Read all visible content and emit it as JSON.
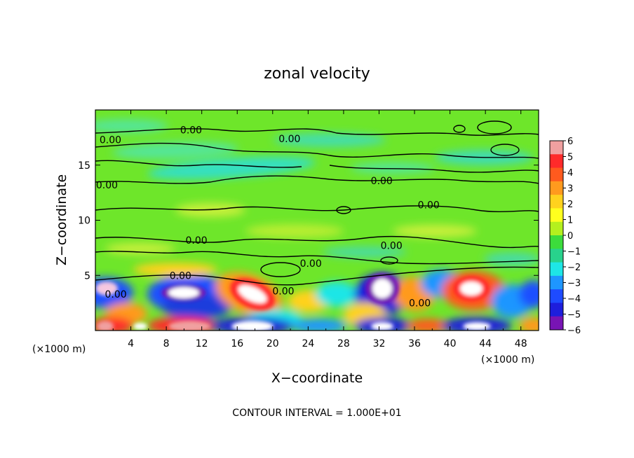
{
  "chart_data": {
    "type": "heatmap",
    "title": "zonal velocity",
    "xlabel": "X−coordinate",
    "ylabel": "Z−coordinate",
    "x_unit": "(×1000 m)",
    "y_unit": "(×1000 m)",
    "xlim": [
      0,
      50
    ],
    "ylim": [
      0,
      20
    ],
    "x_ticks": [
      4,
      8,
      12,
      16,
      20,
      24,
      28,
      32,
      36,
      40,
      44,
      48
    ],
    "y_ticks": [
      5,
      10,
      15
    ],
    "colorbar": {
      "ticks": [
        "6",
        "5",
        "4",
        "3",
        "2",
        "1",
        "0",
        "−1",
        "−2",
        "−3",
        "−4",
        "−5",
        "−6"
      ],
      "colors": [
        "#f0a0a0",
        "#ff2a2a",
        "#ff5a1e",
        "#ff9a1e",
        "#ffd21e",
        "#ffff1e",
        "#b4f01e",
        "#3cdc3c",
        "#28d28c",
        "#1ee6e6",
        "#1e96ff",
        "#1e4bff",
        "#1e1edc",
        "#7814b4"
      ]
    },
    "contour_labels": [
      {
        "text": "0.00",
        "x": 10.8,
        "z": 18.2
      },
      {
        "text": "0.00",
        "x": 21.9,
        "z": 17.4
      },
      {
        "text": "0.00",
        "x": 1.7,
        "z": 17.3
      },
      {
        "text": "0.00",
        "x": 1.3,
        "z": 13.2
      },
      {
        "text": "0.00",
        "x": 32.3,
        "z": 13.6
      },
      {
        "text": "0.00",
        "x": 37.6,
        "z": 11.4
      },
      {
        "text": "0.00",
        "x": 11.4,
        "z": 8.2
      },
      {
        "text": "0.00",
        "x": 33.4,
        "z": 7.7
      },
      {
        "text": "0.00",
        "x": 24.3,
        "z": 6.1
      },
      {
        "text": "0.00",
        "x": 9.6,
        "z": 5.0
      },
      {
        "text": "0.00",
        "x": 21.2,
        "z": 3.6
      },
      {
        "text": "0.00",
        "x": 2.3,
        "z": 3.3
      },
      {
        "text": "0.00",
        "x": 36.6,
        "z": 2.5
      }
    ],
    "contour_interval_text": "CONTOUR INTERVAL = 1.000E+01"
  }
}
